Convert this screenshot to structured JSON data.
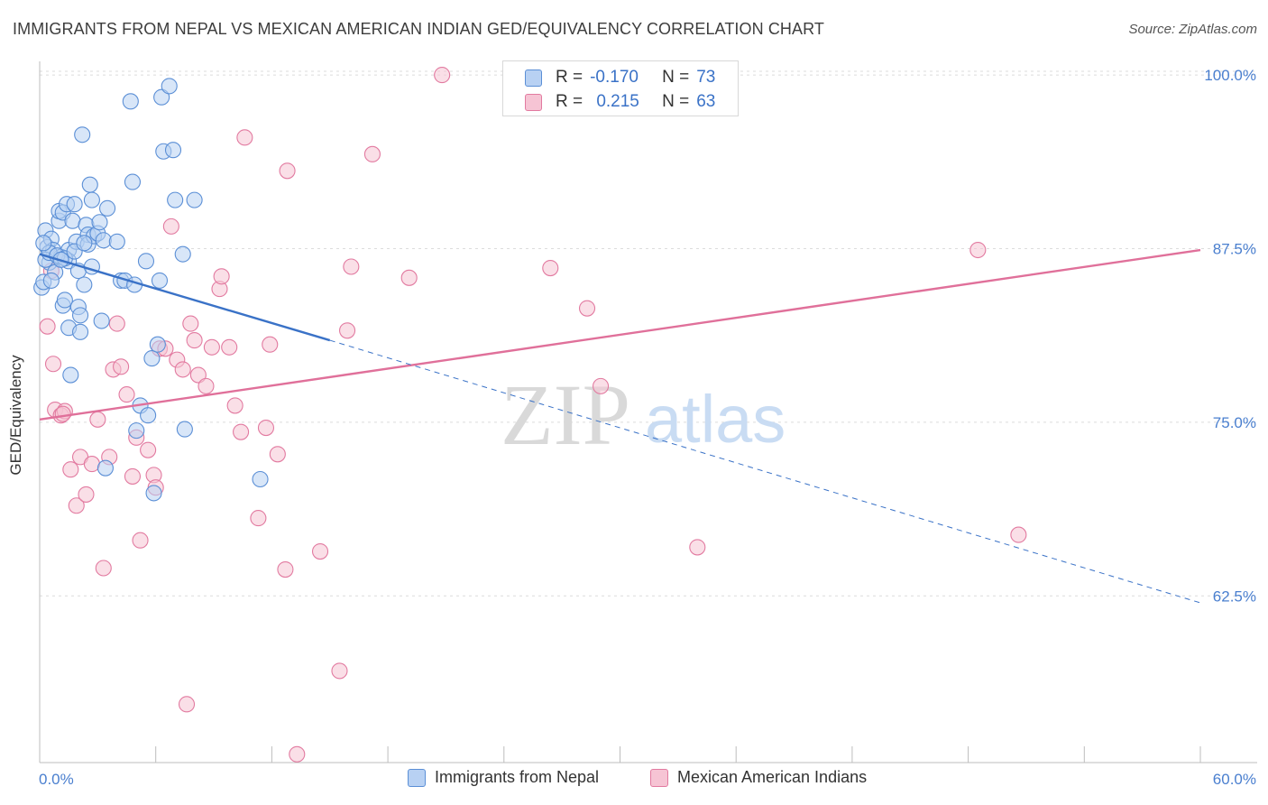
{
  "title": "IMMIGRANTS FROM NEPAL VS MEXICAN AMERICAN INDIAN GED/EQUIVALENCY CORRELATION CHART",
  "source": "Source: ZipAtlas.com",
  "watermark": {
    "zip": "ZIP",
    "atlas": "atlas"
  },
  "colors": {
    "blue": "#5b8fd6",
    "blue_fill": "#b8d1f3",
    "blue_line": "#3a72c7",
    "pink": "#e27aa0",
    "pink_fill": "#f6c4d4",
    "pink_line": "#e0709a",
    "tick_label": "#4a7fcf",
    "grid": "#dcdcdc"
  },
  "legend_stats": [
    {
      "r_label": "R =",
      "r_value": "-0.170",
      "n_label": "N =",
      "n_value": "73"
    },
    {
      "r_label": "R =",
      "r_value": "0.215",
      "n_label": "N =",
      "n_value": "63"
    }
  ],
  "chart_data": {
    "type": "scatter",
    "xlabel": "",
    "ylabel": "GED/Equivalency",
    "xlim": [
      0,
      60
    ],
    "ylim": [
      50.5,
      101.5
    ],
    "x_tick_labels": [
      "0.0%",
      "60.0%"
    ],
    "y_ticks": [
      62.5,
      75.0,
      87.5,
      100.0
    ],
    "y_tick_labels": [
      "62.5%",
      "75.0%",
      "87.5%",
      "100.0%"
    ],
    "grid": true,
    "legend_position": "bottom",
    "series": [
      {
        "name": "Immigrants from Nepal",
        "color": "blue",
        "trend": {
          "x": [
            0,
            15
          ],
          "y": [
            87.1,
            80.9
          ],
          "dashed_to": [
            60,
            62.0
          ]
        },
        "points": [
          [
            0.1,
            84.7
          ],
          [
            0.2,
            85.1
          ],
          [
            0.3,
            88.8
          ],
          [
            0.4,
            87.6
          ],
          [
            0.5,
            86.5
          ],
          [
            0.6,
            88.2
          ],
          [
            0.7,
            87.4
          ],
          [
            0.8,
            85.8
          ],
          [
            1.0,
            89.5
          ],
          [
            1.0,
            90.2
          ],
          [
            1.1,
            86.9
          ],
          [
            1.2,
            83.4
          ],
          [
            1.2,
            90.1
          ],
          [
            1.3,
            83.8
          ],
          [
            1.4,
            90.7
          ],
          [
            1.5,
            87.4
          ],
          [
            1.5,
            86.6
          ],
          [
            1.5,
            81.8
          ],
          [
            1.6,
            78.4
          ],
          [
            1.7,
            89.5
          ],
          [
            1.8,
            90.7
          ],
          [
            1.9,
            88.0
          ],
          [
            2.0,
            85.9
          ],
          [
            2.0,
            83.3
          ],
          [
            2.1,
            82.7
          ],
          [
            2.1,
            81.5
          ],
          [
            2.2,
            95.7
          ],
          [
            2.3,
            84.9
          ],
          [
            2.4,
            89.2
          ],
          [
            2.5,
            88.5
          ],
          [
            2.5,
            87.8
          ],
          [
            2.6,
            92.1
          ],
          [
            2.7,
            86.2
          ],
          [
            2.7,
            91.0
          ],
          [
            2.8,
            88.4
          ],
          [
            3.0,
            88.6
          ],
          [
            3.1,
            89.4
          ],
          [
            3.2,
            82.3
          ],
          [
            3.3,
            88.1
          ],
          [
            3.4,
            71.7
          ],
          [
            3.5,
            90.4
          ],
          [
            4.0,
            88.0
          ],
          [
            4.2,
            85.2
          ],
          [
            4.4,
            85.2
          ],
          [
            4.7,
            98.1
          ],
          [
            4.8,
            92.3
          ],
          [
            4.9,
            84.9
          ],
          [
            5.0,
            74.4
          ],
          [
            5.2,
            76.2
          ],
          [
            5.5,
            86.6
          ],
          [
            5.6,
            75.5
          ],
          [
            5.8,
            79.6
          ],
          [
            5.9,
            69.9
          ],
          [
            6.1,
            80.6
          ],
          [
            6.2,
            85.2
          ],
          [
            6.3,
            98.4
          ],
          [
            6.4,
            94.5
          ],
          [
            6.7,
            99.2
          ],
          [
            6.9,
            94.6
          ],
          [
            7.0,
            91.0
          ],
          [
            7.4,
            87.1
          ],
          [
            7.5,
            74.5
          ],
          [
            8.0,
            91.0
          ],
          [
            11.4,
            70.9
          ],
          [
            0.3,
            86.7
          ],
          [
            0.5,
            87.2
          ],
          [
            0.6,
            85.2
          ],
          [
            0.9,
            87.0
          ],
          [
            1.3,
            86.8
          ],
          [
            1.8,
            87.3
          ],
          [
            2.3,
            87.9
          ],
          [
            0.2,
            87.9
          ],
          [
            1.1,
            86.7
          ]
        ]
      },
      {
        "name": "Mexican American Indians",
        "color": "pink",
        "trend": {
          "x": [
            0,
            60
          ],
          "y": [
            75.2,
            87.4
          ]
        },
        "points": [
          [
            0.4,
            81.9
          ],
          [
            0.6,
            85.9
          ],
          [
            0.7,
            79.2
          ],
          [
            0.8,
            75.9
          ],
          [
            1.1,
            75.5
          ],
          [
            1.3,
            75.8
          ],
          [
            1.6,
            71.6
          ],
          [
            1.9,
            69.0
          ],
          [
            2.1,
            72.5
          ],
          [
            2.4,
            69.8
          ],
          [
            2.7,
            72.0
          ],
          [
            3.0,
            75.2
          ],
          [
            3.3,
            64.5
          ],
          [
            3.6,
            72.5
          ],
          [
            3.8,
            78.8
          ],
          [
            4.0,
            82.1
          ],
          [
            4.2,
            79.0
          ],
          [
            4.5,
            77.0
          ],
          [
            4.8,
            71.1
          ],
          [
            5.0,
            73.9
          ],
          [
            5.2,
            66.5
          ],
          [
            5.6,
            73.0
          ],
          [
            5.9,
            71.2
          ],
          [
            6.0,
            70.3
          ],
          [
            6.2,
            80.3
          ],
          [
            6.5,
            80.3
          ],
          [
            6.8,
            89.1
          ],
          [
            7.1,
            79.5
          ],
          [
            7.4,
            78.8
          ],
          [
            7.6,
            54.7
          ],
          [
            7.8,
            82.1
          ],
          [
            8.0,
            80.9
          ],
          [
            8.2,
            78.4
          ],
          [
            8.6,
            77.6
          ],
          [
            8.9,
            80.4
          ],
          [
            9.3,
            84.6
          ],
          [
            9.4,
            85.5
          ],
          [
            9.8,
            80.4
          ],
          [
            10.1,
            76.2
          ],
          [
            10.4,
            74.3
          ],
          [
            10.6,
            95.5
          ],
          [
            11.3,
            68.1
          ],
          [
            11.7,
            74.6
          ],
          [
            11.9,
            80.6
          ],
          [
            12.3,
            72.7
          ],
          [
            12.7,
            64.4
          ],
          [
            12.8,
            93.1
          ],
          [
            13.3,
            51.1
          ],
          [
            14.5,
            65.7
          ],
          [
            15.5,
            57.1
          ],
          [
            15.9,
            81.6
          ],
          [
            16.1,
            86.2
          ],
          [
            17.2,
            94.3
          ],
          [
            19.1,
            85.4
          ],
          [
            20.8,
            100.0
          ],
          [
            26.4,
            86.1
          ],
          [
            28.3,
            83.2
          ],
          [
            29.0,
            77.6
          ],
          [
            31.8,
            100.0
          ],
          [
            34.0,
            66.0
          ],
          [
            48.5,
            87.4
          ],
          [
            50.6,
            66.9
          ],
          [
            1.2,
            75.6
          ]
        ]
      }
    ]
  }
}
